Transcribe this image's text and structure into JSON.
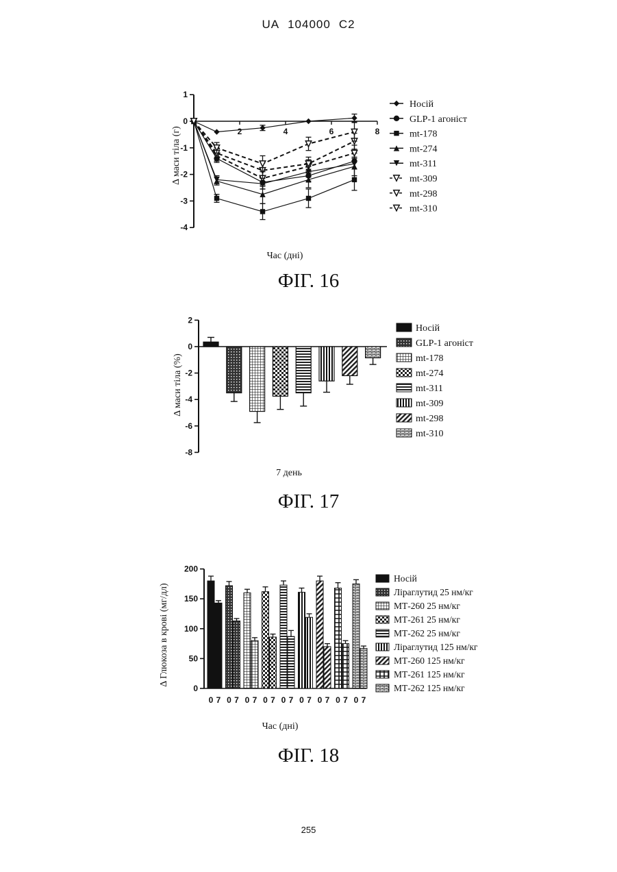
{
  "header": {
    "doc_prefix": "UA",
    "doc_number": "104000",
    "doc_kind": "C2"
  },
  "page_number": "255",
  "chart_data": [
    {
      "type": "line",
      "caption": "ФІГ. 16",
      "xlabel": "Час (дні)",
      "ylabel": "Δ маси тіла (г)",
      "xlim": [
        0,
        8
      ],
      "ylim": [
        -4,
        1
      ],
      "x_ticks": [
        "2",
        "4",
        "6",
        "8"
      ],
      "y_ticks": [
        "1",
        "0",
        "-1",
        "-2",
        "-3",
        "-4"
      ],
      "x": [
        0,
        1,
        3,
        5,
        7
      ],
      "series": [
        {
          "name": "Носій",
          "marker": "diamond",
          "dash": "solid",
          "values": [
            0,
            -0.4,
            -0.25,
            0,
            0.12
          ],
          "errors": [
            0,
            0,
            0.1,
            0,
            0.15
          ]
        },
        {
          "name": "GLP-1 агоніст",
          "marker": "circle",
          "dash": "solid",
          "values": [
            0,
            -1.4,
            -2.3,
            -2.05,
            -1.5
          ],
          "errors": [
            0,
            0.15,
            0.25,
            0.2,
            0.3
          ]
        },
        {
          "name": "mt-178",
          "marker": "square",
          "dash": "solid",
          "values": [
            0,
            -2.9,
            -3.4,
            -2.9,
            -2.2
          ],
          "errors": [
            0,
            0.15,
            0.3,
            0.35,
            0.4
          ]
        },
        {
          "name": "mt-274",
          "marker": "triangle-up",
          "dash": "solid",
          "values": [
            0,
            -2.25,
            -2.75,
            -2.2,
            -1.7
          ],
          "errors": [
            0,
            0.15,
            0.35,
            0.3,
            0.35
          ]
        },
        {
          "name": "mt-311",
          "marker": "triangle-down",
          "dash": "solid",
          "values": [
            0,
            -2.2,
            -2.35,
            -1.9,
            -1.6
          ],
          "errors": [
            0,
            0.15,
            0.2,
            0.2,
            0.2
          ]
        },
        {
          "name": "mt-309",
          "marker": "triangle-down-open",
          "dash": "dashed",
          "values": [
            0,
            -1.3,
            -2.15,
            -1.7,
            -1.2
          ],
          "errors": [
            0,
            0.2,
            0.3,
            0.25,
            0.3
          ]
        },
        {
          "name": "mt-298",
          "marker": "triangle-down-open",
          "dash": "dashed",
          "values": [
            0,
            -1.2,
            -1.85,
            -1.6,
            -0.75
          ],
          "errors": [
            0,
            0.2,
            0.3,
            0.25,
            0.3
          ]
        },
        {
          "name": "mt-310",
          "marker": "triangle-down-open",
          "dash": "dashed",
          "values": [
            0,
            -1.0,
            -1.6,
            -0.85,
            -0.4
          ],
          "errors": [
            0,
            0.2,
            0.3,
            0.25,
            0.35
          ]
        }
      ]
    },
    {
      "type": "bar",
      "caption": "ФІГ. 17",
      "xlabel": "7 день",
      "ylabel": "Δ маси тіла (%)",
      "ylim": [
        -8,
        2
      ],
      "y_ticks": [
        "2",
        "0",
        "-2",
        "-4",
        "-6",
        "-8"
      ],
      "categories": [
        "Носій",
        "GLP-1 агоніст",
        "mt-178",
        "mt-274",
        "mt-311",
        "mt-309",
        "mt-298",
        "mt-310"
      ],
      "values": [
        0.35,
        -3.5,
        -4.9,
        -3.75,
        -3.5,
        -2.6,
        -2.2,
        -0.85
      ],
      "errors": [
        0.35,
        0.65,
        0.85,
        1.0,
        1.0,
        0.85,
        0.65,
        0.5
      ],
      "patterns": [
        "solid",
        "dots",
        "grid",
        "check",
        "hstripes",
        "vstripes",
        "diagonal",
        "brick"
      ]
    },
    {
      "type": "bar",
      "caption": "ФІГ. 18",
      "xlabel": "Час (дні)",
      "ylabel": "Δ Глюкоза в крові (мг/дл)",
      "ylim": [
        0,
        200
      ],
      "y_ticks": [
        "200",
        "150",
        "100",
        "50",
        "0"
      ],
      "day_labels": [
        "0",
        "7"
      ],
      "series": [
        {
          "name": "Носій",
          "pattern": "solid",
          "values": [
            180,
            143
          ],
          "errors": [
            8,
            4
          ]
        },
        {
          "name": "Ліраглутид 25 нм/кг",
          "pattern": "dots",
          "values": [
            172,
            113
          ],
          "errors": [
            7,
            4
          ]
        },
        {
          "name": "МТ-260 25 нм/кг",
          "pattern": "grid",
          "values": [
            160,
            80
          ],
          "errors": [
            6,
            5
          ]
        },
        {
          "name": "МТ-261 25 нм/кг",
          "pattern": "check",
          "values": [
            162,
            86
          ],
          "errors": [
            8,
            5
          ]
        },
        {
          "name": "МТ-262 25 нм/кг",
          "pattern": "hstripes",
          "values": [
            173,
            87
          ],
          "errors": [
            7,
            10
          ]
        },
        {
          "name": "Ліраглутид 125 нм/кг",
          "pattern": "vstripes",
          "values": [
            161,
            119
          ],
          "errors": [
            7,
            6
          ]
        },
        {
          "name": "МТ-260 125 нм/кг",
          "pattern": "diagonal",
          "values": [
            180,
            70
          ],
          "errors": [
            8,
            5
          ]
        },
        {
          "name": "МТ-261 125 нм/кг",
          "pattern": "cross",
          "values": [
            168,
            75
          ],
          "errors": [
            9,
            5
          ]
        },
        {
          "name": "МТ-262 125 нм/кг",
          "pattern": "brick",
          "values": [
            175,
            67
          ],
          "errors": [
            7,
            4
          ]
        }
      ]
    }
  ]
}
